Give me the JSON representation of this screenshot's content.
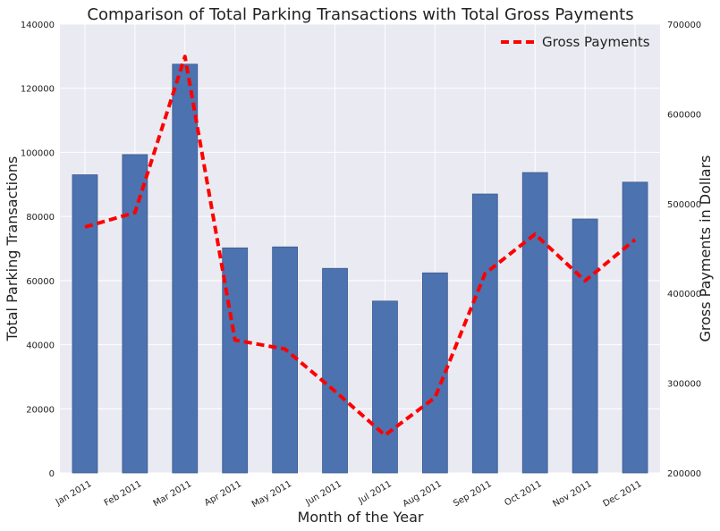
{
  "chart_data": {
    "type": "bar",
    "title": "Comparison of Total Parking Transactions with Total Gross Payments",
    "xlabel": "Month of the Year",
    "ylabel": "Total Parking Transactions",
    "y2label": "Gross Payments in Dollars",
    "categories": [
      "Jan 2011",
      "Feb 2011",
      "Mar 2011",
      "Apr 2011",
      "May 2011",
      "Jun 2011",
      "Jul 2011",
      "Aug 2011",
      "Sep 2011",
      "Oct 2011",
      "Nov 2011",
      "Dec 2011"
    ],
    "series": [
      {
        "type": "bar",
        "axis": "left",
        "values": [
          93000,
          99300,
          127500,
          70200,
          70500,
          63800,
          53600,
          62400,
          87000,
          93700,
          79200,
          90700
        ],
        "color": "#4c72b0"
      },
      {
        "name": "Gross Payments",
        "type": "line",
        "axis": "right",
        "style": "dashed",
        "values": [
          474000,
          490000,
          664000,
          348000,
          338000,
          291000,
          242000,
          284000,
          422000,
          466000,
          414000,
          460000
        ],
        "color": "#ff0000"
      }
    ],
    "ylim": [
      0,
      140000
    ],
    "yticks": [
      "0",
      "20000",
      "40000",
      "60000",
      "80000",
      "100000",
      "120000",
      "140000"
    ],
    "y2lim": [
      200000,
      700000
    ],
    "y2ticks": [
      "200000",
      "300000",
      "400000",
      "500000",
      "600000",
      "700000"
    ],
    "grid": true,
    "legend_position": "top-right",
    "background": "#eaeaf2"
  }
}
